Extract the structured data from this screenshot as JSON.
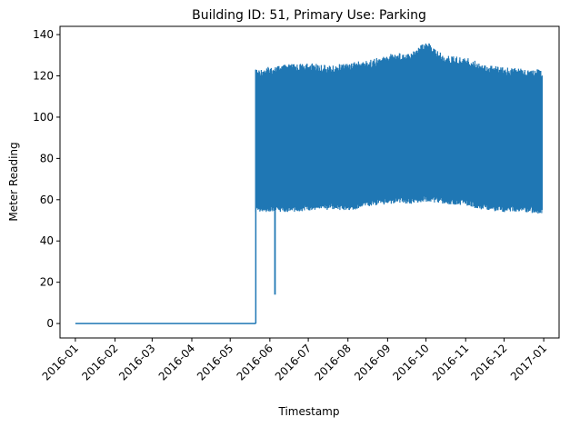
{
  "chart_data": {
    "type": "line",
    "title": "Building ID: 51, Primary Use: Parking",
    "xlabel": "Timestamp",
    "ylabel": "Meter Reading",
    "x_axis_type": "date",
    "xlim": [
      "2015-12-20",
      "2017-01-13"
    ],
    "ylim": [
      -7,
      144
    ],
    "x_ticks": [
      "2016-01",
      "2016-02",
      "2016-03",
      "2016-04",
      "2016-05",
      "2016-06",
      "2016-07",
      "2016-08",
      "2016-09",
      "2016-10",
      "2016-11",
      "2016-12",
      "2017-01"
    ],
    "y_ticks": [
      0,
      20,
      40,
      60,
      80,
      100,
      120,
      140
    ],
    "grid": false,
    "legend": "none",
    "series": [
      {
        "color": "#1f77b4",
        "segments": [
          {
            "kind": "flat",
            "x_start": "2016-01-01",
            "x_end": "2016-05-21",
            "value": 0
          },
          {
            "kind": "oscillating",
            "x_start": "2016-05-21",
            "x_end": "2016-12-31",
            "low": 55,
            "high": 124
          },
          {
            "kind": "dip",
            "x": "2016-06-05",
            "value": 14
          }
        ],
        "envelope": [
          {
            "x": "2016-05-21",
            "low": 54,
            "high": 123
          },
          {
            "x": "2016-06-05",
            "low": 54,
            "high": 125
          },
          {
            "x": "2016-06-20",
            "low": 54,
            "high": 126
          },
          {
            "x": "2016-07-05",
            "low": 55,
            "high": 126
          },
          {
            "x": "2016-07-20",
            "low": 55,
            "high": 125
          },
          {
            "x": "2016-08-05",
            "low": 55,
            "high": 127
          },
          {
            "x": "2016-08-20",
            "low": 57,
            "high": 128
          },
          {
            "x": "2016-09-05",
            "low": 58,
            "high": 131
          },
          {
            "x": "2016-09-20",
            "low": 58,
            "high": 132
          },
          {
            "x": "2016-10-01",
            "low": 59,
            "high": 137
          },
          {
            "x": "2016-10-15",
            "low": 58,
            "high": 130
          },
          {
            "x": "2016-11-01",
            "low": 57,
            "high": 129
          },
          {
            "x": "2016-11-15",
            "low": 55,
            "high": 126
          },
          {
            "x": "2016-12-01",
            "low": 54,
            "high": 124
          },
          {
            "x": "2016-12-15",
            "low": 54,
            "high": 124
          },
          {
            "x": "2016-12-31",
            "low": 53,
            "high": 123
          }
        ]
      }
    ]
  }
}
